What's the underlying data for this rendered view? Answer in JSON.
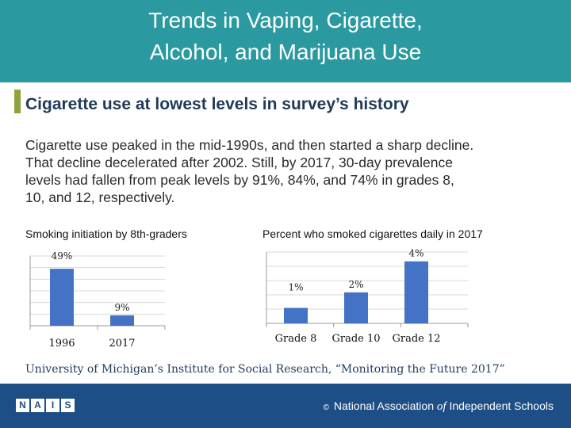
{
  "header": {
    "title_line1": "Trends in Vaping, Cigarette,",
    "title_line2": "Alcohol, and Marijuana Use"
  },
  "subtitle": "Cigarette use at lowest levels in survey’s history",
  "body_lines": [
    "Cigarette use peaked in the mid-1990s, and then started a sharp decline.",
    "That decline decelerated after 2002. Still, by 2017, 30-day prevalence",
    "levels had fallen from peak levels by 91%, 84%, and 74% in grades 8,",
    "10, and 12, respectively."
  ],
  "source": "University of Michigan’s Institute for Social Research, “Monitoring the Future 2017”",
  "footer": {
    "logo_letters": [
      "N",
      "A",
      "I",
      "S"
    ],
    "org_prefix": "©",
    "org_name_a": "National Association",
    "org_name_of": "of",
    "org_name_b": "Independent Schools"
  },
  "colors": {
    "header_bg": "#2a9aa0",
    "accent": "#8da33c",
    "bar": "#4472c4",
    "footer_bg": "#1d4f86"
  },
  "chart_data": [
    {
      "type": "bar",
      "title": "Smoking initiation by 8th-graders",
      "categories": [
        "1996",
        "2017"
      ],
      "values": [
        49,
        9
      ],
      "labels": [
        "49%",
        "9%"
      ],
      "ylim": [
        0,
        60
      ],
      "grid": true
    },
    {
      "type": "bar",
      "title": "Percent who smoked cigarettes daily in 2017",
      "categories": [
        "Grade 8",
        "Grade 10",
        "Grade 12"
      ],
      "values": [
        1,
        2,
        4
      ],
      "labels": [
        "1%",
        "2%",
        "4%"
      ],
      "ylim": [
        0,
        4.6
      ],
      "grid": true
    }
  ]
}
